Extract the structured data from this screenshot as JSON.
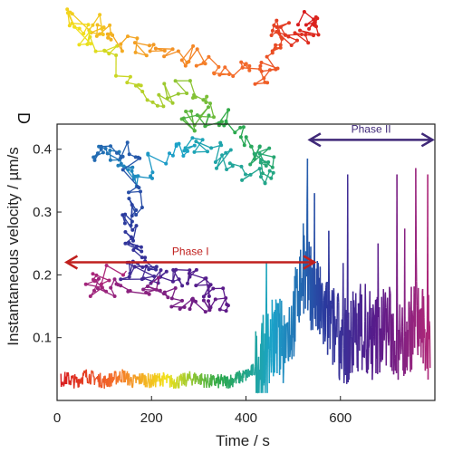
{
  "panel_letter": "D",
  "chart_data": {
    "type": "line",
    "title": "",
    "xlabel": "Time / s",
    "ylabel": "Instantaneous velocity / µm/s",
    "xlim": [
      0,
      800
    ],
    "ylim": [
      0,
      0.44
    ],
    "x_ticks": [
      {
        "value": 0,
        "label": "0"
      },
      {
        "value": 200,
        "label": "200"
      },
      {
        "value": 400,
        "label": "400"
      },
      {
        "value": 600,
        "label": "600"
      }
    ],
    "y_ticks": [
      {
        "value": 0.1,
        "label": "0.1"
      },
      {
        "value": 0.2,
        "label": "0.2"
      },
      {
        "value": 0.3,
        "label": "0.3"
      },
      {
        "value": 0.4,
        "label": "0.4"
      }
    ],
    "grid": false,
    "legend": "none",
    "colormap": "time: red → yellow → green → cyan → blue → purple",
    "colormap_stops": [
      "#d7191c",
      "#f46d2a",
      "#f2e21b",
      "#2ba84a",
      "#1ba3c9",
      "#2b3a9e",
      "#5a1a8a",
      "#b02878"
    ],
    "series": [
      {
        "x": [
          0,
          20,
          40,
          60,
          80,
          100,
          120,
          140,
          160,
          180,
          200,
          220,
          240,
          260,
          280,
          300,
          320,
          340,
          360,
          380,
          400,
          420,
          440,
          460,
          480,
          500,
          520,
          540,
          560,
          580,
          600,
          620,
          640,
          660,
          680,
          700,
          720,
          740,
          760,
          780,
          800
        ],
        "y": [
          0.03,
          0.035,
          0.03,
          0.04,
          0.035,
          0.03,
          0.035,
          0.04,
          0.03,
          0.035,
          0.03,
          0.035,
          0.03,
          0.03,
          0.035,
          0.035,
          0.03,
          0.03,
          0.03,
          0.035,
          0.04,
          0.05,
          0.07,
          0.1,
          0.09,
          0.13,
          0.2,
          0.18,
          0.14,
          0.12,
          0.1,
          0.09,
          0.12,
          0.08,
          0.11,
          0.12,
          0.09,
          0.1,
          0.13,
          0.1,
          0.1
        ]
      }
    ],
    "peaks": [
      {
        "x": 530,
        "y": 0.385
      },
      {
        "x": 545,
        "y": 0.33
      },
      {
        "x": 575,
        "y": 0.27
      },
      {
        "x": 615,
        "y": 0.36
      },
      {
        "x": 680,
        "y": 0.25
      },
      {
        "x": 720,
        "y": 0.36
      },
      {
        "x": 760,
        "y": 0.37
      },
      {
        "x": 785,
        "y": 0.36
      }
    ],
    "phases": [
      {
        "label": "Phase I",
        "x_start": 20,
        "x_end": 545,
        "y": 0.22,
        "color": "#c0201e"
      },
      {
        "label": "Phase II",
        "x_start": 535,
        "x_end": 795,
        "y": 0.415,
        "color": "#3f2878"
      }
    ],
    "inset": {
      "type": "trajectory",
      "color_by": "time",
      "note": "2D trajectory of the particle overlaid on the upper left, colored with the same time colormap"
    }
  }
}
